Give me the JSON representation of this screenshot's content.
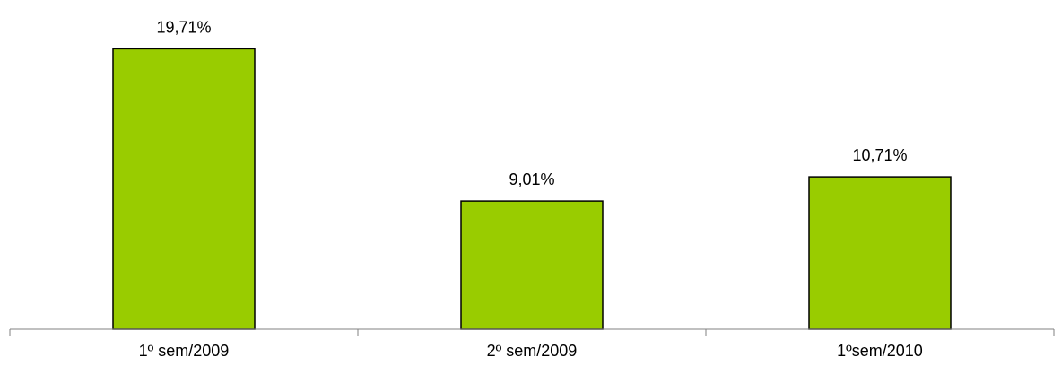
{
  "chart_data": {
    "type": "bar",
    "categories": [
      "1º sem/2009",
      "2º sem/2009",
      "1ºsem/2010"
    ],
    "values": [
      19.71,
      9.01,
      10.71
    ],
    "data_labels": [
      "19,71%",
      "9,01%",
      "10,71%"
    ],
    "title": "",
    "xlabel": "",
    "ylabel": "",
    "ylim": [
      0,
      21.5
    ],
    "grid": false,
    "legend": "none",
    "bar_color": "#99cc00",
    "bar_stroke": "#000000"
  }
}
